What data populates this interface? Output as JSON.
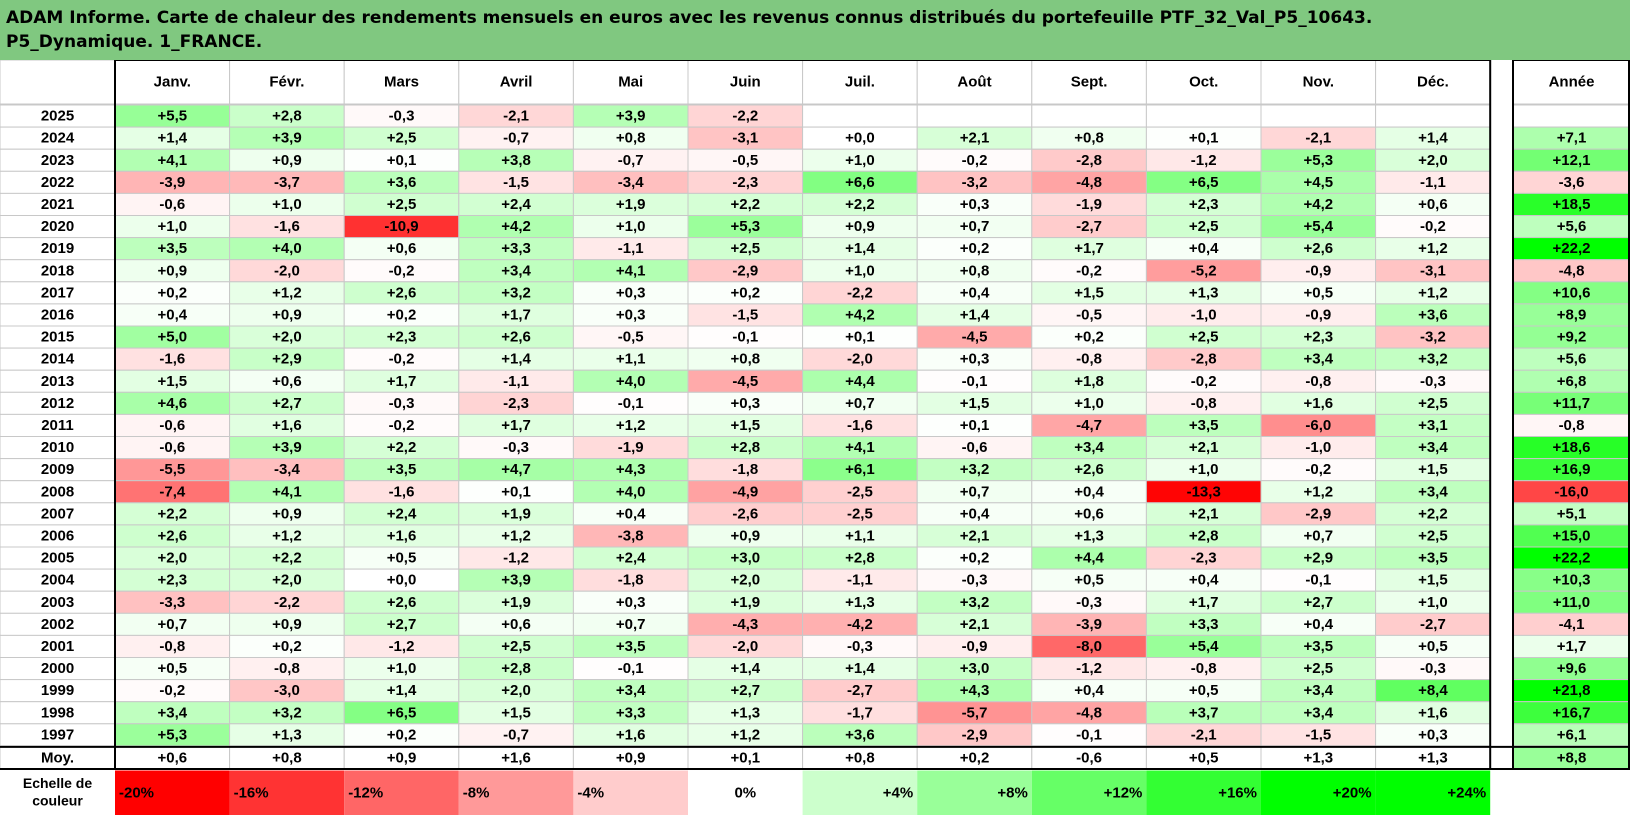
{
  "report": {
    "title_line1": "ADAM Informe. Carte de chaleur des rendements mensuels en euros avec les revenus connus distribués du portefeuille PTF_32_Val_P5_10643.",
    "title_line2": "P5_Dynamique. 1_FRANCE."
  },
  "chart_data": {
    "type": "heatmap",
    "columns": [
      "Janv.",
      "Févr.",
      "Mars",
      "Avril",
      "Mai",
      "Juin",
      "Juil.",
      "Août",
      "Sept.",
      "Oct.",
      "Nov.",
      "Déc."
    ],
    "annual_column": "Année",
    "rows": [
      {
        "year": "2025",
        "months": [
          "+5,5",
          "+2,8",
          "-0,3",
          "-2,1",
          "+3,9",
          "-2,2",
          "",
          "",
          "",
          "",
          "",
          ""
        ],
        "annual": ""
      },
      {
        "year": "2024",
        "months": [
          "+1,4",
          "+3,9",
          "+2,5",
          "-0,7",
          "+0,8",
          "-3,1",
          "+0,0",
          "+2,1",
          "+0,8",
          "+0,1",
          "-2,1",
          "+1,4"
        ],
        "annual": "+7,1"
      },
      {
        "year": "2023",
        "months": [
          "+4,1",
          "+0,9",
          "+0,1",
          "+3,8",
          "-0,7",
          "-0,5",
          "+1,0",
          "-0,2",
          "-2,8",
          "-1,2",
          "+5,3",
          "+2,0"
        ],
        "annual": "+12,1"
      },
      {
        "year": "2022",
        "months": [
          "-3,9",
          "-3,7",
          "+3,6",
          "-1,5",
          "-3,4",
          "-2,3",
          "+6,6",
          "-3,2",
          "-4,8",
          "+6,5",
          "+4,5",
          "-1,1"
        ],
        "annual": "-3,6"
      },
      {
        "year": "2021",
        "months": [
          "-0,6",
          "+1,0",
          "+2,5",
          "+2,4",
          "+1,9",
          "+2,2",
          "+2,2",
          "+0,3",
          "-1,9",
          "+2,3",
          "+4,2",
          "+0,6"
        ],
        "annual": "+18,5"
      },
      {
        "year": "2020",
        "months": [
          "+1,0",
          "-1,6",
          "-10,9",
          "+4,2",
          "+1,0",
          "+5,3",
          "+0,9",
          "+0,7",
          "-2,7",
          "+2,5",
          "+5,4",
          "-0,2"
        ],
        "annual": "+5,6"
      },
      {
        "year": "2019",
        "months": [
          "+3,5",
          "+4,0",
          "+0,6",
          "+3,3",
          "-1,1",
          "+2,5",
          "+1,4",
          "+0,2",
          "+1,7",
          "+0,4",
          "+2,6",
          "+1,2"
        ],
        "annual": "+22,2"
      },
      {
        "year": "2018",
        "months": [
          "+0,9",
          "-2,0",
          "-0,2",
          "+3,4",
          "+4,1",
          "-2,9",
          "+1,0",
          "+0,8",
          "-0,2",
          "-5,2",
          "-0,9",
          "-3,1"
        ],
        "annual": "-4,8"
      },
      {
        "year": "2017",
        "months": [
          "+0,2",
          "+1,2",
          "+2,6",
          "+3,2",
          "+0,3",
          "+0,2",
          "-2,2",
          "+0,4",
          "+1,5",
          "+1,3",
          "+0,5",
          "+1,2"
        ],
        "annual": "+10,6"
      },
      {
        "year": "2016",
        "months": [
          "+0,4",
          "+0,9",
          "+0,2",
          "+1,7",
          "+0,3",
          "-1,5",
          "+4,2",
          "+1,4",
          "-0,5",
          "-1,0",
          "-0,9",
          "+3,6"
        ],
        "annual": "+8,9"
      },
      {
        "year": "2015",
        "months": [
          "+5,0",
          "+2,0",
          "+2,3",
          "+2,6",
          "-0,5",
          "-0,1",
          "+0,1",
          "-4,5",
          "+0,2",
          "+2,5",
          "+2,3",
          "-3,2"
        ],
        "annual": "+9,2"
      },
      {
        "year": "2014",
        "months": [
          "-1,6",
          "+2,9",
          "-0,2",
          "+1,4",
          "+1,1",
          "+0,8",
          "-2,0",
          "+0,3",
          "-0,8",
          "-2,8",
          "+3,4",
          "+3,2"
        ],
        "annual": "+5,6"
      },
      {
        "year": "2013",
        "months": [
          "+1,5",
          "+0,6",
          "+1,7",
          "-1,1",
          "+4,0",
          "-4,5",
          "+4,4",
          "-0,1",
          "+1,8",
          "-0,2",
          "-0,8",
          "-0,3"
        ],
        "annual": "+6,8"
      },
      {
        "year": "2012",
        "months": [
          "+4,6",
          "+2,7",
          "-0,3",
          "-2,3",
          "-0,1",
          "+0,3",
          "+0,7",
          "+1,5",
          "+1,0",
          "-0,8",
          "+1,6",
          "+2,5"
        ],
        "annual": "+11,7"
      },
      {
        "year": "2011",
        "months": [
          "-0,6",
          "+1,6",
          "-0,2",
          "+1,7",
          "+1,2",
          "+1,5",
          "-1,6",
          "+0,1",
          "-4,7",
          "+3,5",
          "-6,0",
          "+3,1"
        ],
        "annual": "-0,8"
      },
      {
        "year": "2010",
        "months": [
          "-0,6",
          "+3,9",
          "+2,2",
          "-0,3",
          "-1,9",
          "+2,8",
          "+4,1",
          "-0,6",
          "+3,4",
          "+2,1",
          "-1,0",
          "+3,4"
        ],
        "annual": "+18,6"
      },
      {
        "year": "2009",
        "months": [
          "-5,5",
          "-3,4",
          "+3,5",
          "+4,7",
          "+4,3",
          "-1,8",
          "+6,1",
          "+3,2",
          "+2,6",
          "+1,0",
          "-0,2",
          "+1,5"
        ],
        "annual": "+16,9"
      },
      {
        "year": "2008",
        "months": [
          "-7,4",
          "+4,1",
          "-1,6",
          "+0,1",
          "+4,0",
          "-4,9",
          "-2,5",
          "+0,7",
          "+0,4",
          "-13,3",
          "+1,2",
          "+3,4"
        ],
        "annual": "-16,0"
      },
      {
        "year": "2007",
        "months": [
          "+2,2",
          "+0,9",
          "+2,4",
          "+1,9",
          "+0,4",
          "-2,6",
          "-2,5",
          "+0,4",
          "+0,6",
          "+2,1",
          "-2,9",
          "+2,2"
        ],
        "annual": "+5,1"
      },
      {
        "year": "2006",
        "months": [
          "+2,6",
          "+1,2",
          "+1,6",
          "+1,2",
          "-3,8",
          "+0,9",
          "+1,1",
          "+2,1",
          "+1,3",
          "+2,8",
          "+0,7",
          "+2,5"
        ],
        "annual": "+15,0"
      },
      {
        "year": "2005",
        "months": [
          "+2,0",
          "+2,2",
          "+0,5",
          "-1,2",
          "+2,4",
          "+3,0",
          "+2,8",
          "+0,2",
          "+4,4",
          "-2,3",
          "+2,9",
          "+3,5"
        ],
        "annual": "+22,2"
      },
      {
        "year": "2004",
        "months": [
          "+2,3",
          "+2,0",
          "+0,0",
          "+3,9",
          "-1,8",
          "+2,0",
          "-1,1",
          "-0,3",
          "+0,5",
          "+0,4",
          "-0,1",
          "+1,5"
        ],
        "annual": "+10,3"
      },
      {
        "year": "2003",
        "months": [
          "-3,3",
          "-2,2",
          "+2,6",
          "+1,9",
          "+0,3",
          "+1,9",
          "+1,3",
          "+3,2",
          "-0,3",
          "+1,7",
          "+2,7",
          "+1,0"
        ],
        "annual": "+11,0"
      },
      {
        "year": "2002",
        "months": [
          "+0,7",
          "+0,9",
          "+2,7",
          "+0,6",
          "+0,7",
          "-4,3",
          "-4,2",
          "+2,1",
          "-3,9",
          "+3,3",
          "+0,4",
          "-2,7"
        ],
        "annual": "-4,1"
      },
      {
        "year": "2001",
        "months": [
          "-0,8",
          "+0,2",
          "-1,2",
          "+2,5",
          "+3,5",
          "-2,0",
          "-0,3",
          "-0,9",
          "-8,0",
          "+5,4",
          "+3,5",
          "+0,5"
        ],
        "annual": "+1,7"
      },
      {
        "year": "2000",
        "months": [
          "+0,5",
          "-0,8",
          "+1,0",
          "+2,8",
          "-0,1",
          "+1,4",
          "+1,4",
          "+3,0",
          "-1,2",
          "-0,8",
          "+2,5",
          "-0,3"
        ],
        "annual": "+9,6"
      },
      {
        "year": "1999",
        "months": [
          "-0,2",
          "-3,0",
          "+1,4",
          "+2,0",
          "+3,4",
          "+2,7",
          "-2,7",
          "+4,3",
          "+0,4",
          "+0,5",
          "+3,4",
          "+8,4"
        ],
        "annual": "+21,8"
      },
      {
        "year": "1998",
        "months": [
          "+3,4",
          "+3,2",
          "+6,5",
          "+1,5",
          "+3,3",
          "+1,3",
          "-1,7",
          "-5,7",
          "-4,8",
          "+3,7",
          "+3,4",
          "+1,6"
        ],
        "annual": "+16,7"
      },
      {
        "year": "1997",
        "months": [
          "+5,3",
          "+1,3",
          "+0,2",
          "-0,7",
          "+1,6",
          "+1,2",
          "+3,6",
          "-2,9",
          "-0,1",
          "-2,1",
          "-1,5",
          "+0,3"
        ],
        "annual": "+6,1"
      }
    ],
    "average_row": {
      "label": "Moy.",
      "months": [
        "+0,6",
        "+0,8",
        "+0,9",
        "+1,6",
        "+0,9",
        "+0,1",
        "+0,8",
        "+0,2",
        "-0,6",
        "+0,5",
        "+1,3",
        "+1,3"
      ],
      "annual": "+8,8"
    },
    "color_scale": {
      "label": "Echelle de couleur",
      "steps": [
        "-20%",
        "-16%",
        "-12%",
        "-8%",
        "-4%",
        "0%",
        "+4%",
        "+8%",
        "+12%",
        "+16%",
        "+20%",
        "+24%"
      ],
      "negative_color": "#ff0000",
      "positive_color": "#00ff00",
      "neutral_color": "#ffffff"
    }
  }
}
